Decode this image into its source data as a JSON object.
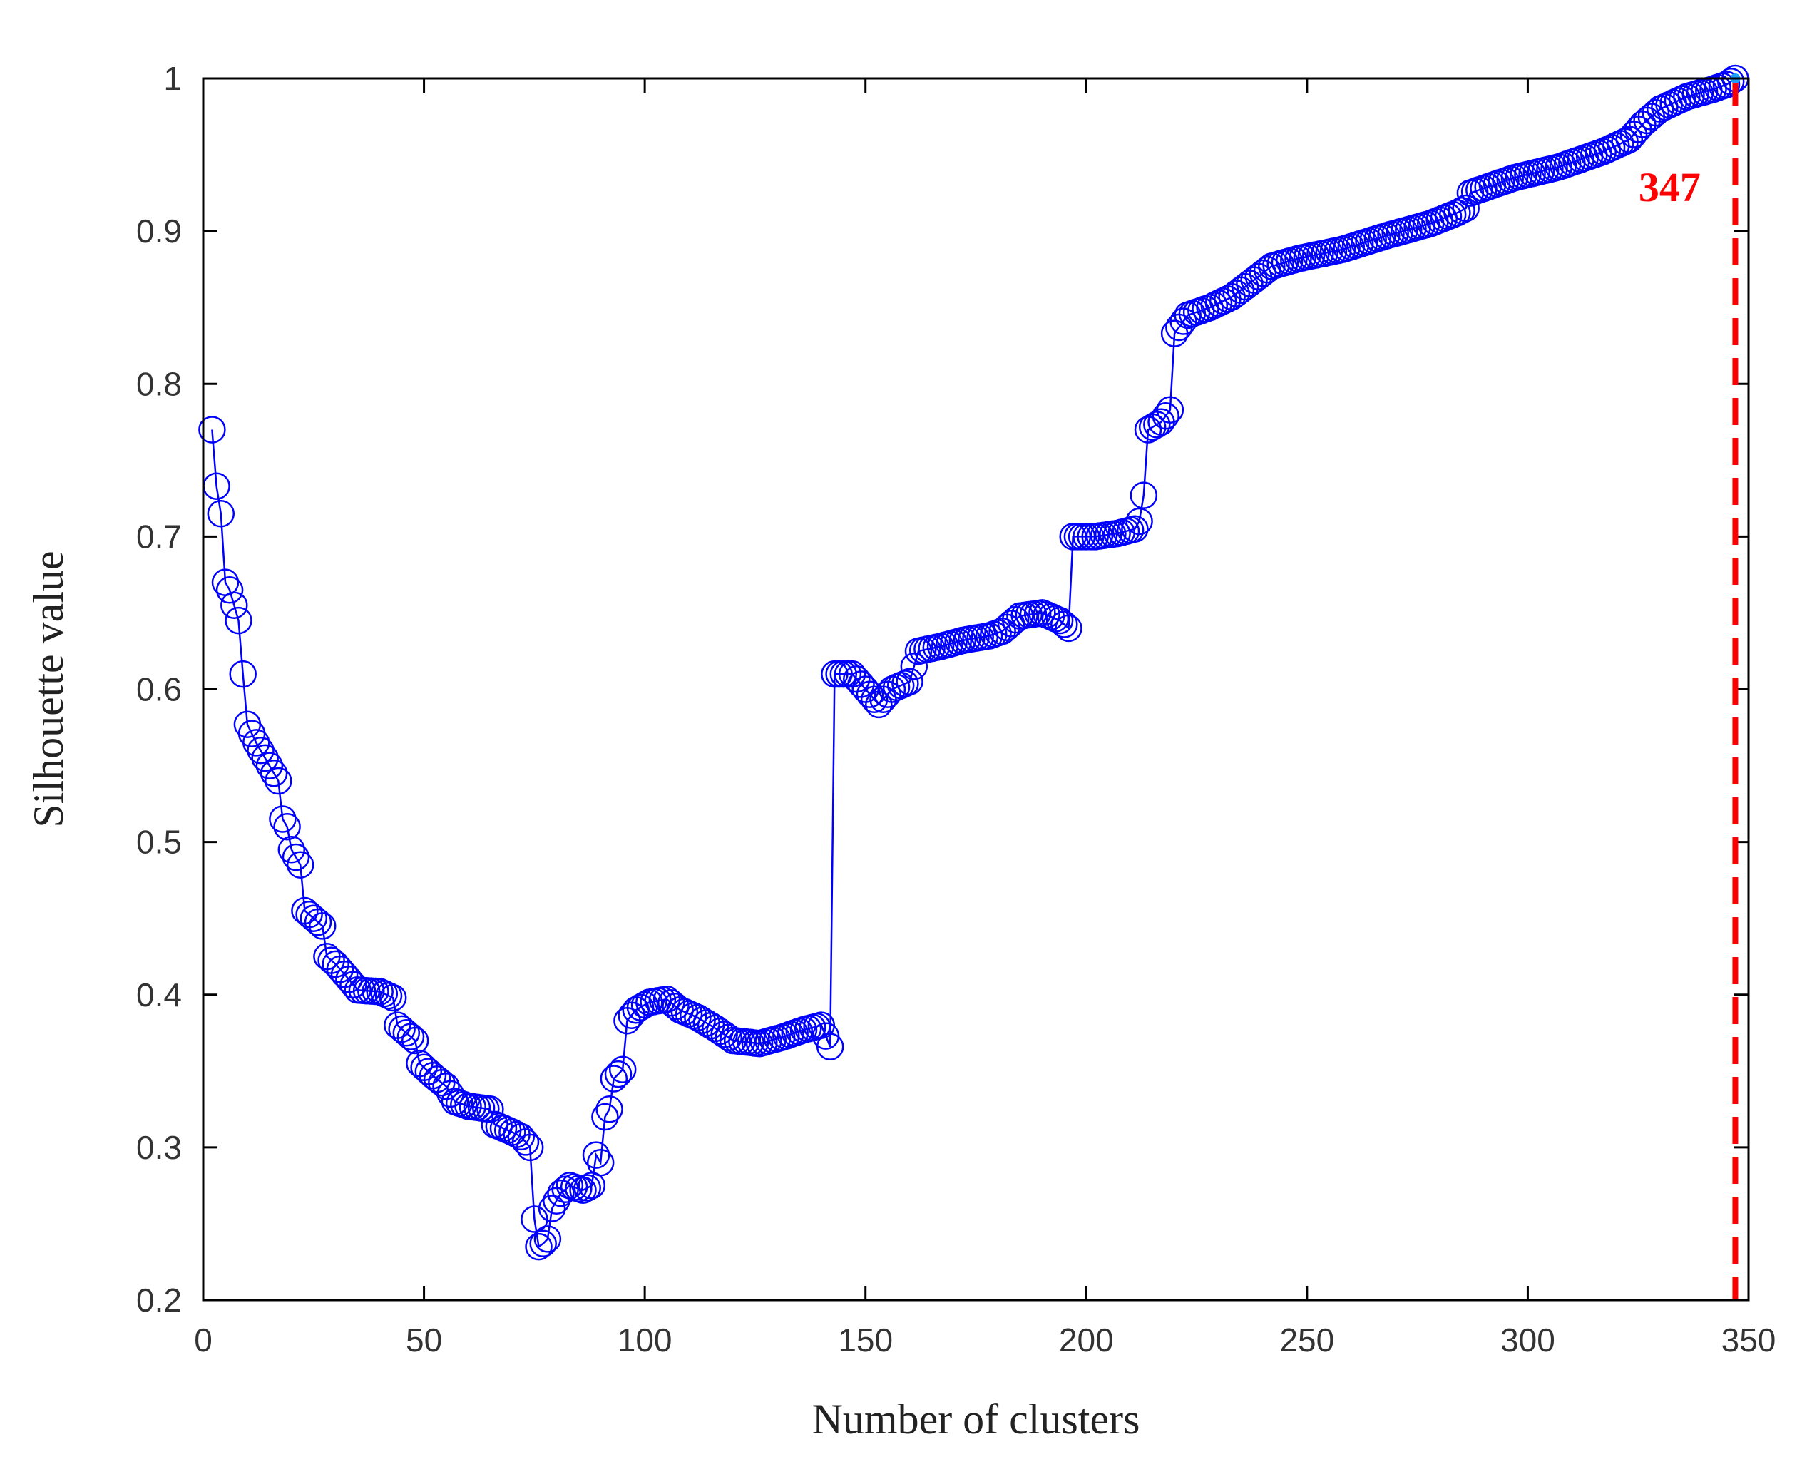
{
  "chart_data": {
    "type": "line",
    "title": "",
    "xlabel": "Number of clusters",
    "ylabel": "Silhouette value",
    "xlim": [
      0,
      350
    ],
    "ylim": [
      0.2,
      1
    ],
    "xticks": [
      0,
      50,
      100,
      150,
      200,
      250,
      300,
      350
    ],
    "yticks": [
      0.2,
      0.3,
      0.4,
      0.5,
      0.6,
      0.7,
      0.8,
      0.9,
      1
    ],
    "xtick_labels": [
      "0",
      "50",
      "100",
      "150",
      "200",
      "250",
      "300",
      "350"
    ],
    "ytick_labels": [
      "0.2",
      "0.3",
      "0.4",
      "0.5",
      "0.6",
      "0.7",
      "0.8",
      "0.9",
      "1"
    ],
    "grid": false,
    "legend": "none",
    "series_color": "#0000ff",
    "marker": "circle",
    "anchors": [
      [
        2,
        0.77
      ],
      [
        3,
        0.733
      ],
      [
        4,
        0.715
      ],
      [
        5,
        0.67
      ],
      [
        6,
        0.665
      ],
      [
        7,
        0.655
      ],
      [
        8,
        0.645
      ],
      [
        9,
        0.61
      ],
      [
        10,
        0.577
      ],
      [
        12,
        0.565
      ],
      [
        15,
        0.55
      ],
      [
        17,
        0.54
      ],
      [
        18,
        0.515
      ],
      [
        19,
        0.51
      ],
      [
        20,
        0.495
      ],
      [
        22,
        0.485
      ],
      [
        23,
        0.455
      ],
      [
        25,
        0.45
      ],
      [
        27,
        0.445
      ],
      [
        28,
        0.425
      ],
      [
        30,
        0.42
      ],
      [
        33,
        0.41
      ],
      [
        35,
        0.403
      ],
      [
        40,
        0.402
      ],
      [
        43,
        0.398
      ],
      [
        44,
        0.38
      ],
      [
        46,
        0.375
      ],
      [
        48,
        0.37
      ],
      [
        49,
        0.355
      ],
      [
        52,
        0.347
      ],
      [
        55,
        0.34
      ],
      [
        57,
        0.33
      ],
      [
        60,
        0.327
      ],
      [
        65,
        0.325
      ],
      [
        66,
        0.315
      ],
      [
        70,
        0.31
      ],
      [
        72,
        0.307
      ],
      [
        74,
        0.3
      ],
      [
        75,
        0.253
      ],
      [
        76,
        0.235
      ],
      [
        77,
        0.237
      ],
      [
        78,
        0.24
      ],
      [
        79,
        0.26
      ],
      [
        81,
        0.27
      ],
      [
        83,
        0.275
      ],
      [
        86,
        0.272
      ],
      [
        88,
        0.275
      ],
      [
        89,
        0.295
      ],
      [
        90,
        0.29
      ],
      [
        91,
        0.32
      ],
      [
        92,
        0.325
      ],
      [
        93,
        0.345
      ],
      [
        94,
        0.348
      ],
      [
        95,
        0.351
      ],
      [
        96,
        0.383
      ],
      [
        98,
        0.39
      ],
      [
        101,
        0.395
      ],
      [
        105,
        0.397
      ],
      [
        108,
        0.39
      ],
      [
        112,
        0.385
      ],
      [
        116,
        0.378
      ],
      [
        120,
        0.37
      ],
      [
        126,
        0.368
      ],
      [
        131,
        0.372
      ],
      [
        136,
        0.377
      ],
      [
        140,
        0.38
      ],
      [
        142,
        0.366
      ],
      [
        143,
        0.61
      ],
      [
        147,
        0.61
      ],
      [
        150,
        0.6
      ],
      [
        153,
        0.59
      ],
      [
        156,
        0.6
      ],
      [
        160,
        0.605
      ],
      [
        162,
        0.625
      ],
      [
        167,
        0.628
      ],
      [
        172,
        0.632
      ],
      [
        178,
        0.635
      ],
      [
        181,
        0.638
      ],
      [
        185,
        0.648
      ],
      [
        190,
        0.65
      ],
      [
        194,
        0.645
      ],
      [
        196,
        0.64
      ],
      [
        197,
        0.7
      ],
      [
        202,
        0.7
      ],
      [
        207,
        0.702
      ],
      [
        211,
        0.705
      ],
      [
        212,
        0.71
      ],
      [
        213,
        0.727
      ],
      [
        214,
        0.77
      ],
      [
        217,
        0.775
      ],
      [
        219,
        0.783
      ],
      [
        220,
        0.833
      ],
      [
        223,
        0.845
      ],
      [
        228,
        0.85
      ],
      [
        233,
        0.857
      ],
      [
        238,
        0.868
      ],
      [
        242,
        0.877
      ],
      [
        248,
        0.882
      ],
      [
        258,
        0.888
      ],
      [
        268,
        0.897
      ],
      [
        278,
        0.905
      ],
      [
        284,
        0.912
      ],
      [
        286,
        0.915
      ],
      [
        287,
        0.925
      ],
      [
        290,
        0.928
      ],
      [
        297,
        0.935
      ],
      [
        307,
        0.942
      ],
      [
        317,
        0.952
      ],
      [
        323,
        0.96
      ],
      [
        326,
        0.97
      ],
      [
        330,
        0.98
      ],
      [
        336,
        0.988
      ],
      [
        342,
        0.993
      ],
      [
        345,
        0.996
      ],
      [
        347,
        1.0
      ]
    ],
    "markers_every": 1,
    "optimal": {
      "x": 347,
      "label": "347",
      "color": "#ff0000",
      "style": "dashed"
    }
  }
}
